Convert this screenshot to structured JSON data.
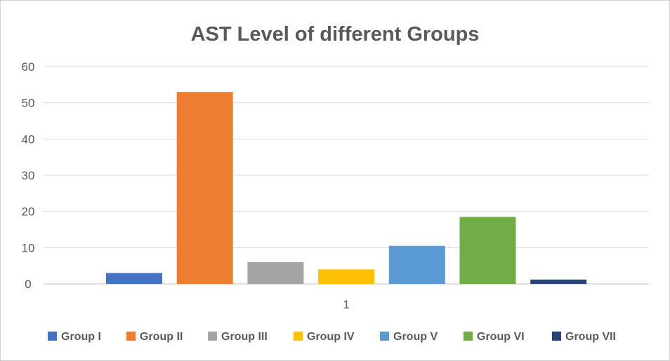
{
  "chart_data": {
    "type": "bar",
    "title": "AST Level of different Groups",
    "xlabel": "",
    "ylabel": "",
    "categories": [
      "1"
    ],
    "ylim": [
      0,
      60
    ],
    "y_ticks": [
      0,
      10,
      20,
      30,
      40,
      50,
      60
    ],
    "grid": "horizontal",
    "legend_position": "bottom",
    "series": [
      {
        "name": "Group I",
        "values": [
          3
        ],
        "color": "#4472c4"
      },
      {
        "name": "Group II",
        "values": [
          53
        ],
        "color": "#ed7d31"
      },
      {
        "name": "Group III",
        "values": [
          6
        ],
        "color": "#a5a5a5"
      },
      {
        "name": "Group IV",
        "values": [
          4
        ],
        "color": "#ffc000"
      },
      {
        "name": "Group V",
        "values": [
          10.5
        ],
        "color": "#5b9bd5"
      },
      {
        "name": "Group VI",
        "values": [
          18.5
        ],
        "color": "#70ad47"
      },
      {
        "name": "Group VII",
        "values": [
          1.2
        ],
        "color": "#264478"
      }
    ]
  }
}
